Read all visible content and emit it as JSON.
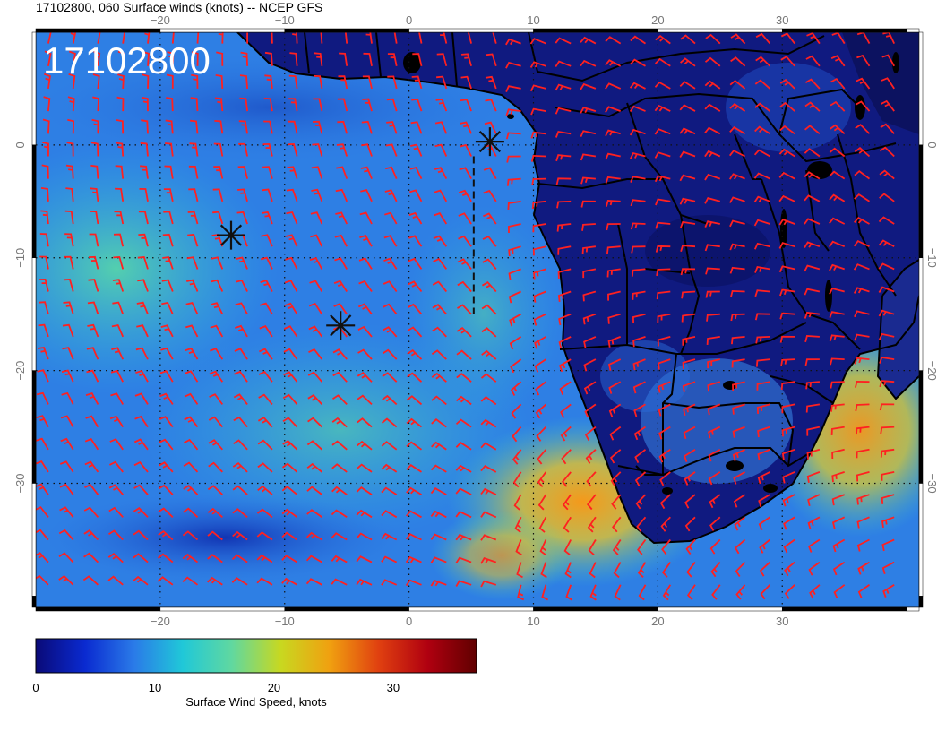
{
  "title": "17102800, 060 Surface winds (knots) -- NCEP GFS",
  "date_stamp": "17102800",
  "map": {
    "lon_range": [
      -30,
      41
    ],
    "lat_range": [
      -41,
      10
    ],
    "lon_ticks": [
      {
        "value": -20,
        "label": "−20"
      },
      {
        "value": -10,
        "label": "−10"
      },
      {
        "value": 0,
        "label": "0"
      },
      {
        "value": 10,
        "label": "10"
      },
      {
        "value": 20,
        "label": "20"
      },
      {
        "value": 30,
        "label": "30"
      }
    ],
    "lat_ticks": [
      {
        "value": 0,
        "label": "0"
      },
      {
        "value": -10,
        "label": "−10"
      },
      {
        "value": -20,
        "label": "−20"
      },
      {
        "value": -30,
        "label": "−30"
      }
    ],
    "grid": true,
    "barb_color": "#ff2020",
    "coast_color": "#000000",
    "markers": [
      {
        "lon": 6.5,
        "lat": 0.3
      },
      {
        "lon": -14.3,
        "lat": -8.0
      },
      {
        "lon": -5.5,
        "lat": -16.0
      }
    ],
    "dashed_track": [
      [
        5.2,
        -1.0
      ],
      [
        5.2,
        -15.0
      ]
    ]
  },
  "colorbar": {
    "label": "Surface Wind Speed, knots",
    "min": 0,
    "max": 37,
    "ticks": [
      {
        "value": 0,
        "label": "0"
      },
      {
        "value": 10,
        "label": "10"
      },
      {
        "value": 20,
        "label": "20"
      },
      {
        "value": 30,
        "label": "30"
      }
    ],
    "stops": [
      "#0a0a78",
      "#0a2ad0",
      "#2a7ae8",
      "#20c8d8",
      "#60d8a0",
      "#c8d820",
      "#f0a010",
      "#e04010",
      "#b00010",
      "#600000"
    ]
  }
}
